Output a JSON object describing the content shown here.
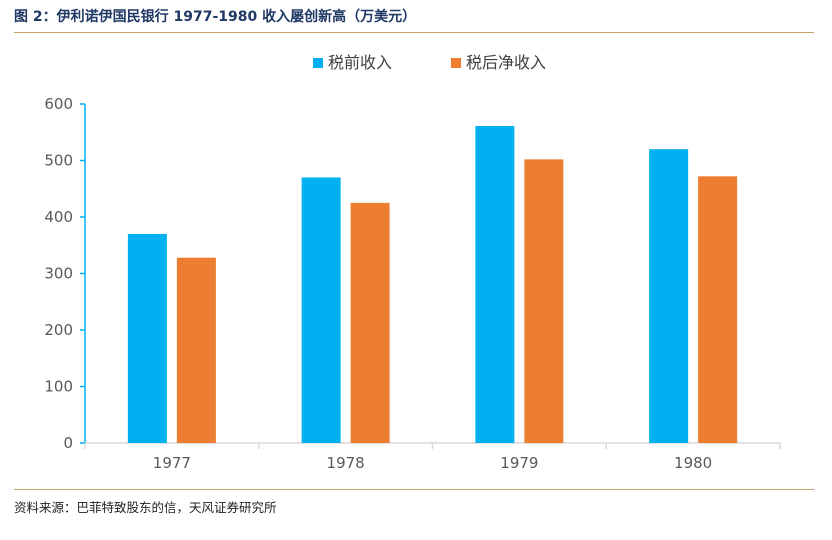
{
  "title": "图 2：伊利诺伊国民银行 1977-1980 收入屡创新高（万美元）",
  "source": "资料来源：巴菲特致股东的信，天风证券研究所",
  "colors": {
    "pretax": "#00b0f0",
    "net": "#ed7d31",
    "axis": "#00b0f0",
    "rule": "#c8a06a"
  },
  "chart_data": {
    "type": "bar",
    "categories": [
      "1977",
      "1978",
      "1979",
      "1980"
    ],
    "series": [
      {
        "name": "税前收入",
        "values": [
          370,
          470,
          561,
          520
        ]
      },
      {
        "name": "税后净收入",
        "values": [
          328,
          425,
          502,
          472
        ]
      }
    ],
    "ylim": [
      0,
      600
    ],
    "yticks": [
      0,
      100,
      200,
      300,
      400,
      500,
      600
    ],
    "legend": "top-center",
    "grid": false
  }
}
